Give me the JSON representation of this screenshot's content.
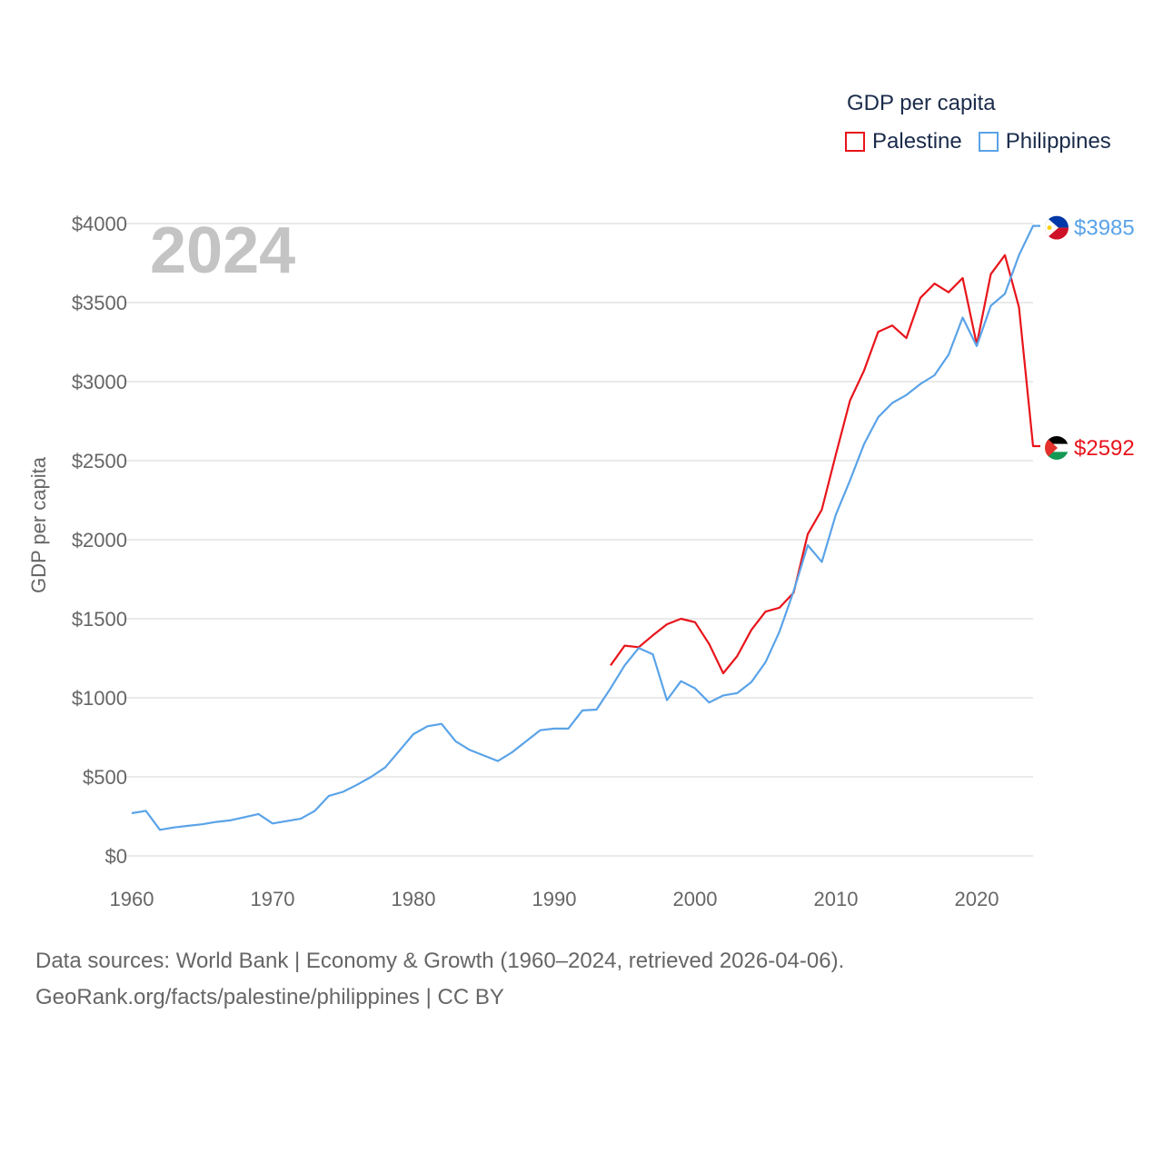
{
  "legend": {
    "title": "GDP per capita",
    "items": [
      {
        "label": "Palestine",
        "color": "#e8141b"
      },
      {
        "label": "Philippines",
        "color": "#5aa3e8"
      }
    ]
  },
  "source": {
    "line1": "Data sources: World Bank | Economy & Growth (1960–2024, retrieved 2026-04-06).",
    "line2": "GeoRank.org/facts/palestine/philippines | CC BY"
  },
  "chart_data": {
    "type": "line",
    "title": "GDP per capita",
    "year_label": "2024",
    "xlabel": "",
    "ylabel": "GDP per capita",
    "xlim": [
      1960,
      2024
    ],
    "ylim": [
      0,
      4000
    ],
    "x_ticks": [
      1960,
      1970,
      1980,
      1990,
      2000,
      2010,
      2020
    ],
    "y_ticks": [
      0,
      500,
      1000,
      1500,
      2000,
      2500,
      3000,
      3500,
      4000
    ],
    "y_tick_labels": [
      "$0",
      "$500",
      "$1000",
      "$1500",
      "$2000",
      "$2500",
      "$3000",
      "$3500",
      "$4000"
    ],
    "grid": true,
    "legend_position": "top-right",
    "series": [
      {
        "name": "Palestine",
        "color": "#e8141b",
        "end_label": "$2592",
        "flag_icon": "palestine-flag-icon",
        "x": [
          1994,
          1995,
          1996,
          1997,
          1998,
          1999,
          2000,
          2001,
          2002,
          2003,
          2004,
          2005,
          2006,
          2007,
          2008,
          2009,
          2010,
          2011,
          2012,
          2013,
          2014,
          2015,
          2016,
          2017,
          2018,
          2019,
          2020,
          2021,
          2022,
          2023,
          2024
        ],
        "values": [
          1205,
          1330,
          1320,
          1395,
          1465,
          1500,
          1478,
          1340,
          1155,
          1265,
          1430,
          1545,
          1570,
          1665,
          2035,
          2190,
          2540,
          2880,
          3070,
          3315,
          3355,
          3275,
          3530,
          3620,
          3565,
          3655,
          3235,
          3680,
          3800,
          3470,
          2592
        ]
      },
      {
        "name": "Philippines",
        "color": "#5aa3e8",
        "end_label": "$3985",
        "flag_icon": "philippines-flag-icon",
        "x": [
          1960,
          1961,
          1962,
          1963,
          1964,
          1965,
          1966,
          1967,
          1968,
          1969,
          1970,
          1971,
          1972,
          1973,
          1974,
          1975,
          1976,
          1977,
          1978,
          1979,
          1980,
          1981,
          1982,
          1983,
          1984,
          1985,
          1986,
          1987,
          1988,
          1989,
          1990,
          1991,
          1992,
          1993,
          1994,
          1995,
          1996,
          1997,
          1998,
          1999,
          2000,
          2001,
          2002,
          2003,
          2004,
          2005,
          2006,
          2007,
          2008,
          2009,
          2010,
          2011,
          2012,
          2013,
          2014,
          2015,
          2016,
          2017,
          2018,
          2019,
          2020,
          2021,
          2022,
          2023,
          2024
        ],
        "values": [
          270,
          285,
          165,
          180,
          190,
          200,
          215,
          225,
          245,
          265,
          205,
          220,
          235,
          285,
          380,
          405,
          450,
          500,
          560,
          665,
          770,
          820,
          835,
          725,
          670,
          635,
          600,
          655,
          725,
          795,
          805,
          805,
          920,
          925,
          1060,
          1205,
          1315,
          1275,
          985,
          1105,
          1060,
          970,
          1015,
          1030,
          1100,
          1225,
          1420,
          1675,
          1965,
          1860,
          2160,
          2375,
          2605,
          2775,
          2865,
          2915,
          2985,
          3040,
          3170,
          3405,
          3225,
          3480,
          3555,
          3800,
          3985
        ]
      }
    ]
  }
}
